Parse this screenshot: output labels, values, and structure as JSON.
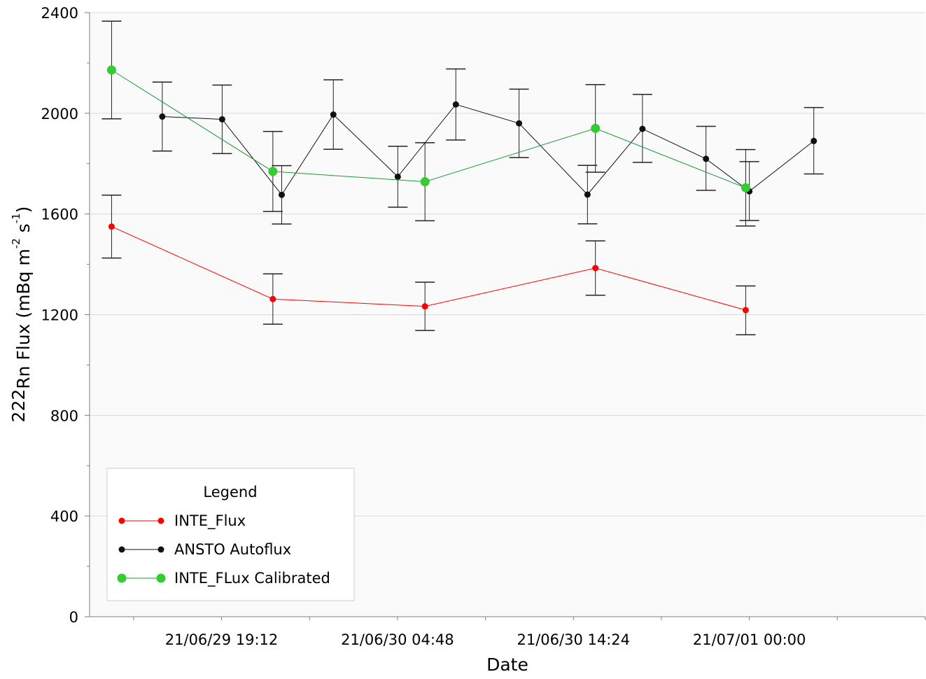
{
  "chart_data": {
    "type": "line",
    "xlabel": "Date",
    "ylabel_parts": [
      "222",
      "Rn Flux (mBq m",
      "-2",
      " s",
      "-1",
      ")"
    ],
    "ylim": [
      0,
      2400
    ],
    "y_ticks": [
      "0",
      "400",
      "800",
      "1200",
      "1600",
      "2000",
      "2400"
    ],
    "x_ticks": [
      "21/06/29 19:12",
      "21/06/30 04:48",
      "21/06/30 14:24",
      "21/07/01 00:00"
    ],
    "xlim": [
      "2021-06-29 12:00",
      "2021-07-01 09:36"
    ],
    "grid": true,
    "legend": {
      "title": "Legend",
      "position": "bottom-left"
    },
    "series": [
      {
        "name": "INTE_Flux",
        "color": "#ff0000",
        "line_color": "#ff0000",
        "marker": "small-circle",
        "points": [
          {
            "x": "2021-06-29 13:12",
            "y": 1550,
            "err_low": 1425,
            "err_high": 1675
          },
          {
            "x": "2021-06-29 22:00",
            "y": 1262,
            "err_low": 1162,
            "err_high": 1362
          },
          {
            "x": "2021-06-30 06:18",
            "y": 1233,
            "err_low": 1137,
            "err_high": 1329
          },
          {
            "x": "2021-06-30 15:36",
            "y": 1385,
            "err_low": 1277,
            "err_high": 1493
          },
          {
            "x": "2021-06-30 23:48",
            "y": 1218,
            "err_low": 1120,
            "err_high": 1314
          }
        ]
      },
      {
        "name": "ANSTO Autoflux",
        "color": "#111111",
        "line_color": "#111111",
        "marker": "small-circle",
        "points": [
          {
            "x": "2021-06-29 15:58",
            "y": 1987,
            "err_low": 1850,
            "err_high": 2124
          },
          {
            "x": "2021-06-29 19:14",
            "y": 1976,
            "err_low": 1840,
            "err_high": 2112
          },
          {
            "x": "2021-06-29 22:29",
            "y": 1676,
            "err_low": 1560,
            "err_high": 1792
          },
          {
            "x": "2021-06-30 01:18",
            "y": 1995,
            "err_low": 1857,
            "err_high": 2133
          },
          {
            "x": "2021-06-30 04:49",
            "y": 1748,
            "err_low": 1627,
            "err_high": 1869
          },
          {
            "x": "2021-06-30 07:59",
            "y": 2035,
            "err_low": 1894,
            "err_high": 2176
          },
          {
            "x": "2021-06-30 11:26",
            "y": 1960,
            "err_low": 1824,
            "err_high": 2096
          },
          {
            "x": "2021-06-30 15:10",
            "y": 1677,
            "err_low": 1561,
            "err_high": 1793
          },
          {
            "x": "2021-06-30 18:10",
            "y": 1938,
            "err_low": 1805,
            "err_high": 2075
          },
          {
            "x": "2021-06-30 21:38",
            "y": 1819,
            "err_low": 1694,
            "err_high": 1948
          },
          {
            "x": "2021-07-01 00:00",
            "y": 1690,
            "err_low": 1574,
            "err_high": 1808
          },
          {
            "x": "2021-07-01 03:31",
            "y": 1890,
            "err_low": 1759,
            "err_high": 2023
          }
        ]
      },
      {
        "name": "INTE_FLux Calibrated",
        "color": "#33cc33",
        "line_color": "#1a9a3a",
        "marker": "large-circle",
        "points": [
          {
            "x": "2021-06-29 13:12",
            "y": 2172,
            "err_low": 1978,
            "err_high": 2366
          },
          {
            "x": "2021-06-29 22:00",
            "y": 1769,
            "err_low": 1610,
            "err_high": 1928
          },
          {
            "x": "2021-06-30 06:18",
            "y": 1728,
            "err_low": 1573,
            "err_high": 1883
          },
          {
            "x": "2021-06-30 15:36",
            "y": 1940,
            "err_low": 1766,
            "err_high": 2114
          },
          {
            "x": "2021-06-30 23:48",
            "y": 1704,
            "err_low": 1552,
            "err_high": 1856
          }
        ]
      }
    ]
  }
}
